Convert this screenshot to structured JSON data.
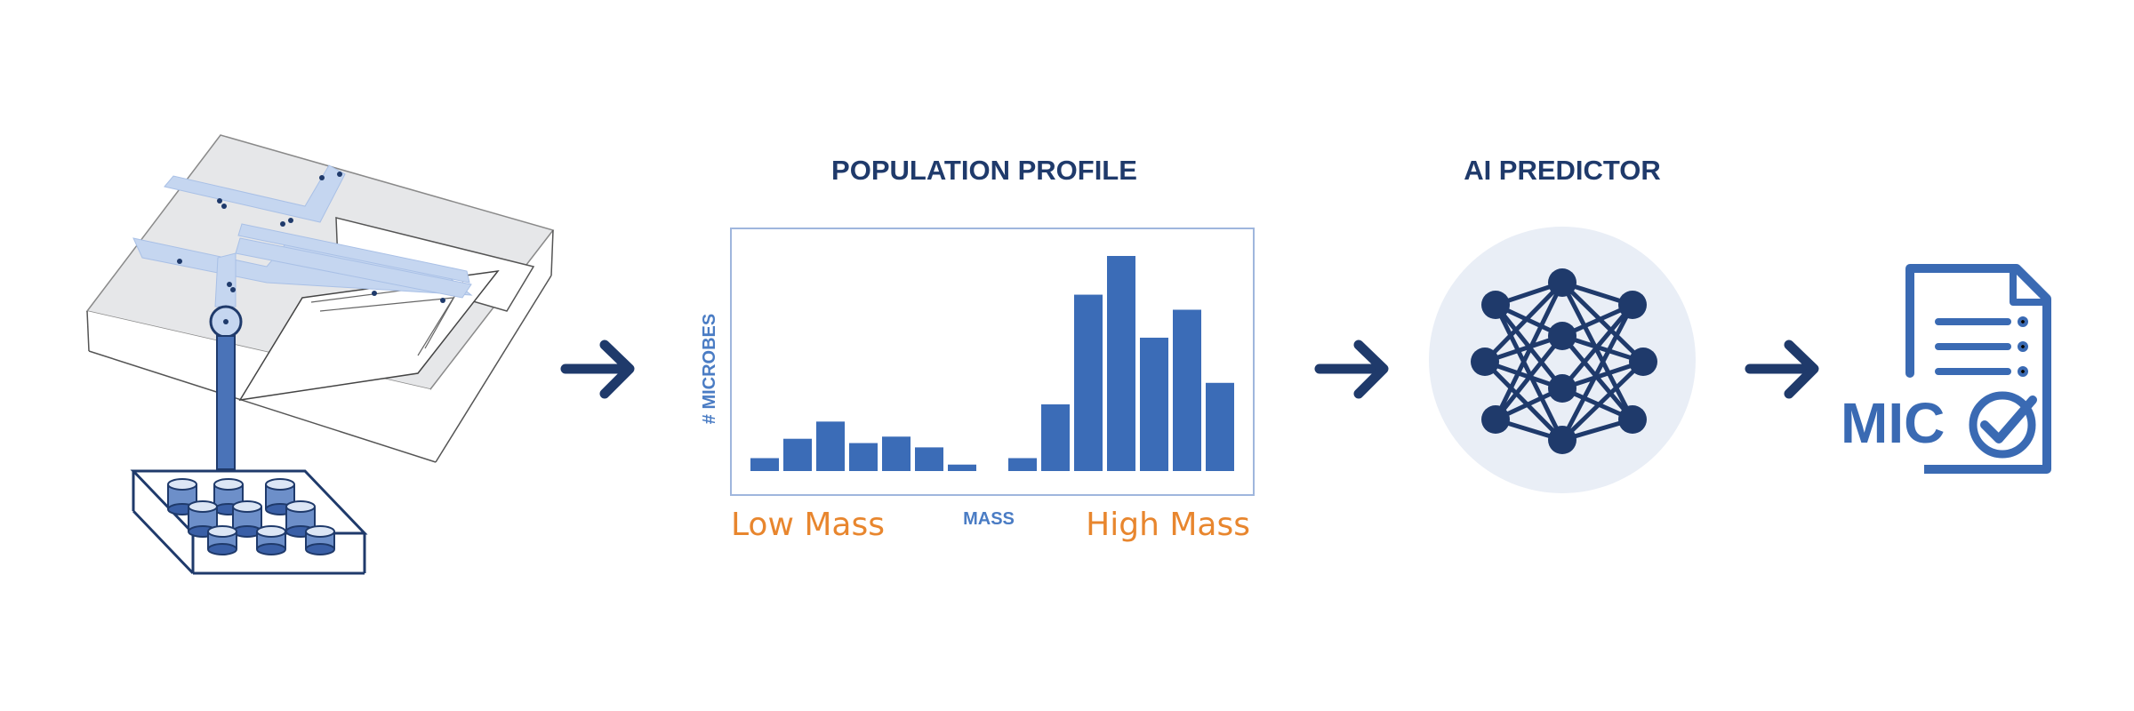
{
  "panels": {
    "device": {
      "icon": "microfluidic-chip-and-well-plate-icon"
    },
    "profile": {
      "title": "POPULATION PROFILE"
    },
    "predictor": {
      "title": "AI PREDICTOR",
      "icon": "neural-network-icon"
    },
    "result": {
      "label": "MIC",
      "icon": "report-document-check-icon"
    }
  },
  "arrows": {
    "icon": "arrow-right-icon",
    "color": "#1f3a6b"
  },
  "chart_data": {
    "type": "bar",
    "ylabel": "# MICROBES",
    "xlabel": "MASS",
    "x_low_label": "Low Mass",
    "x_high_label": "High Mass",
    "ylim": [
      0,
      100
    ],
    "bar_color": "#3b6cb7",
    "groups": [
      {
        "values": [
          6,
          15,
          23,
          13,
          16,
          11,
          3
        ]
      },
      {
        "values": [
          6,
          31,
          82,
          100,
          62,
          75,
          41
        ]
      }
    ]
  },
  "colors": {
    "navy": "#1f3a6b",
    "accent_blue": "#3b6cb7",
    "orange": "#e8862e",
    "circle_bg": "#e9eef6"
  }
}
